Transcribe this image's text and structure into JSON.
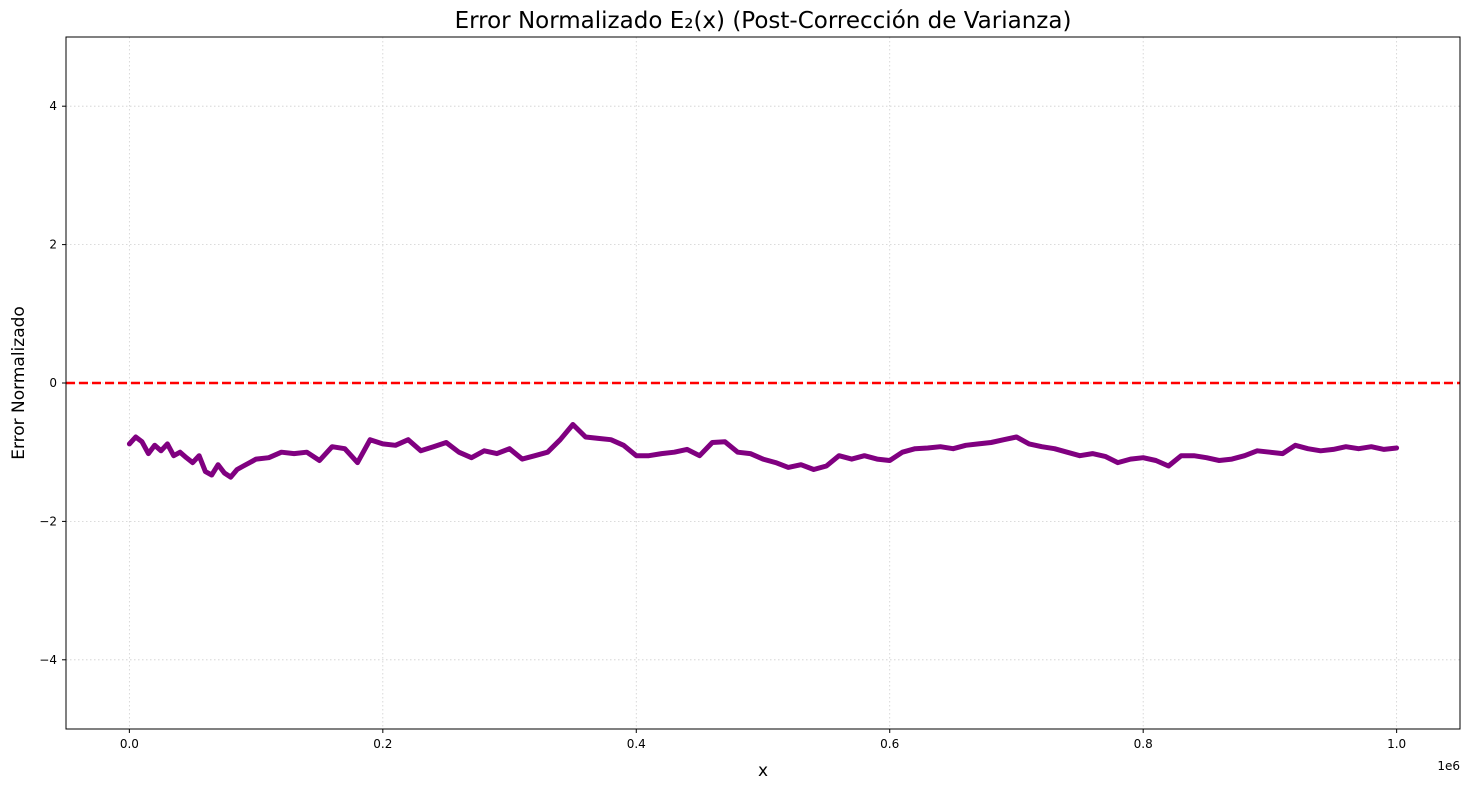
{
  "chart_data": {
    "type": "line",
    "title": "Error Normalizado E₂(x) (Post-Corrección de Varianza)",
    "xlabel": "x",
    "ylabel": "Error Normalizado",
    "x_offset_text": "1e6",
    "xlim": [
      -50000,
      1050000
    ],
    "ylim": [
      -5,
      5
    ],
    "xticks": [
      0,
      200000,
      400000,
      600000,
      800000,
      1000000
    ],
    "xtick_labels": [
      "0.0",
      "0.2",
      "0.4",
      "0.6",
      "0.8",
      "1.0"
    ],
    "yticks": [
      -4,
      -2,
      0,
      2,
      4
    ],
    "ytick_labels": [
      "−4",
      "−2",
      "0",
      "2",
      "4"
    ],
    "grid": true,
    "reference_line": {
      "y": 0,
      "color": "#ff0000",
      "style": "dashed"
    },
    "series": [
      {
        "color": "#800080",
        "x": [
          0,
          5000,
          10000,
          15000,
          20000,
          25000,
          30000,
          35000,
          40000,
          45000,
          50000,
          55000,
          60000,
          65000,
          70000,
          75000,
          80000,
          85000,
          90000,
          95000,
          100000,
          110000,
          120000,
          130000,
          140000,
          150000,
          160000,
          170000,
          180000,
          190000,
          200000,
          210000,
          220000,
          230000,
          240000,
          250000,
          260000,
          270000,
          280000,
          290000,
          300000,
          310000,
          320000,
          330000,
          340000,
          350000,
          360000,
          370000,
          380000,
          390000,
          400000,
          410000,
          420000,
          430000,
          440000,
          450000,
          460000,
          470000,
          480000,
          490000,
          500000,
          510000,
          520000,
          530000,
          540000,
          550000,
          560000,
          570000,
          580000,
          590000,
          600000,
          610000,
          620000,
          630000,
          640000,
          650000,
          660000,
          670000,
          680000,
          690000,
          700000,
          710000,
          720000,
          730000,
          740000,
          750000,
          760000,
          770000,
          780000,
          790000,
          800000,
          810000,
          820000,
          830000,
          840000,
          850000,
          860000,
          870000,
          880000,
          890000,
          900000,
          910000,
          920000,
          930000,
          940000,
          950000,
          960000,
          970000,
          980000,
          990000,
          1000000
        ],
        "y": [
          -0.88,
          -0.78,
          -0.85,
          -1.02,
          -0.9,
          -0.98,
          -0.88,
          -1.05,
          -1.0,
          -1.08,
          -1.15,
          -1.05,
          -1.28,
          -1.33,
          -1.18,
          -1.3,
          -1.36,
          -1.25,
          -1.2,
          -1.15,
          -1.1,
          -1.08,
          -1.0,
          -1.02,
          -1.0,
          -1.12,
          -0.92,
          -0.95,
          -1.15,
          -0.82,
          -0.88,
          -0.9,
          -0.82,
          -0.98,
          -0.92,
          -0.86,
          -1.0,
          -1.08,
          -0.98,
          -1.02,
          -0.95,
          -1.1,
          -1.05,
          -1.0,
          -0.82,
          -0.6,
          -0.78,
          -0.8,
          -0.82,
          -0.9,
          -1.05,
          -1.05,
          -1.02,
          -1.0,
          -0.96,
          -1.05,
          -0.86,
          -0.85,
          -1.0,
          -1.02,
          -1.1,
          -1.15,
          -1.22,
          -1.18,
          -1.25,
          -1.2,
          -1.05,
          -1.1,
          -1.05,
          -1.1,
          -1.12,
          -1.0,
          -0.95,
          -0.94,
          -0.92,
          -0.95,
          -0.9,
          -0.88,
          -0.86,
          -0.82,
          -0.78,
          -0.88,
          -0.92,
          -0.95,
          -1.0,
          -1.05,
          -1.02,
          -1.06,
          -1.15,
          -1.1,
          -1.08,
          -1.12,
          -1.2,
          -1.05,
          -1.05,
          -1.08,
          -1.12,
          -1.1,
          -1.05,
          -0.98,
          -1.0,
          -1.02,
          -0.9,
          -0.95,
          -0.98,
          -0.96,
          -0.92,
          -0.95,
          -0.92,
          -0.96,
          -0.94
        ]
      }
    ]
  }
}
